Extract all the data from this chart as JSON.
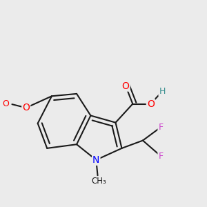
{
  "bg_color": "#ebebeb",
  "bond_color": "#1a1a1a",
  "bond_width": 1.5,
  "dbo": 0.18,
  "atom_colors": {
    "O": "#ff0000",
    "H": "#3a9090",
    "N": "#0000ff",
    "F": "#cc44cc",
    "C": "#1a1a1a"
  },
  "figsize": [
    3.0,
    3.0
  ],
  "dpi": 100
}
